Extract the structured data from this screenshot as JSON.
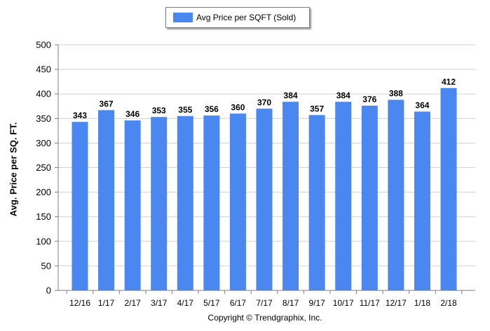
{
  "legend": {
    "label": "Avg Price per SQFT (Sold)"
  },
  "copyright": "Copyright © Trendgraphix, Inc.",
  "colors": {
    "bar": "#4a87f0",
    "gridline": "#d0d0d0",
    "axis": "#7f7f7f"
  },
  "chart_data": {
    "type": "bar",
    "title": "",
    "xlabel": "",
    "ylabel": "Avg. Price per SQ. FT.",
    "ylim": [
      0,
      500
    ],
    "yticks": [
      0,
      50,
      100,
      150,
      200,
      250,
      300,
      350,
      400,
      450,
      500
    ],
    "grid": true,
    "legend_position": "top-center",
    "categories": [
      "12/16",
      "1/17",
      "2/17",
      "3/17",
      "4/17",
      "5/17",
      "6/17",
      "7/17",
      "8/17",
      "9/17",
      "10/17",
      "11/17",
      "12/17",
      "1/18",
      "2/18"
    ],
    "series": [
      {
        "name": "Avg Price per SQFT (Sold)",
        "values": [
          343,
          367,
          346,
          353,
          355,
          356,
          360,
          370,
          384,
          357,
          384,
          376,
          388,
          364,
          412
        ]
      }
    ]
  }
}
